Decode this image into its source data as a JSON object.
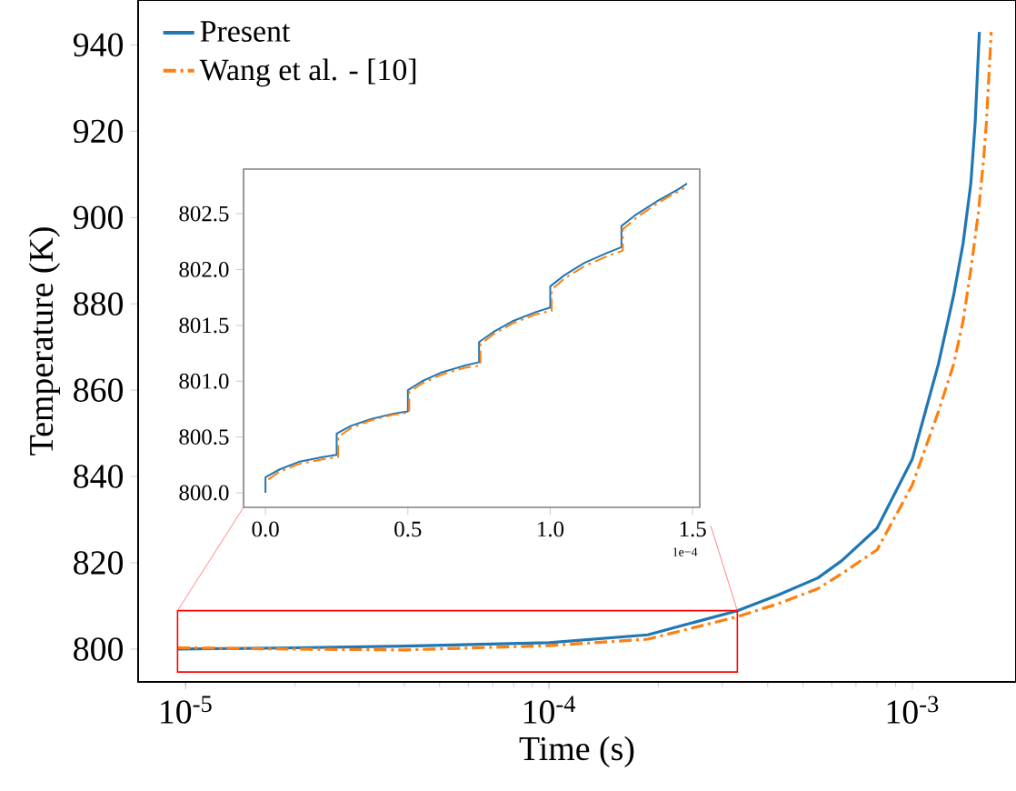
{
  "chart_data": [
    {
      "type": "line",
      "xlabel": "Time (s)",
      "ylabel": "Temperature (K)",
      "log": "x",
      "xlim": [
        7.4e-06,
        0.00193
      ],
      "ylim": [
        792.4,
        950.4
      ],
      "xticks": [
        {
          "value": 1e-05,
          "label": "10$^{-5}$"
        },
        {
          "value": 0.0001,
          "label": "10$^{-4}$"
        },
        {
          "value": 0.001,
          "label": "10$^{-3}$"
        }
      ],
      "yticks": [
        800,
        820,
        840,
        860,
        880,
        900,
        920,
        940
      ],
      "legend": "top left",
      "series": [
        {
          "name": "Present",
          "color": "#1f77b4",
          "line_style": "solid",
          "x": [
            9.5e-06,
            2e-05,
            4e-05,
            0.0001,
            0.000187,
            0.00033,
            0.000427,
            0.00055,
            0.00064,
            0.0008,
            0.001,
            0.00118,
            0.0013,
            0.00138,
            0.00145,
            0.00149,
            0.00153
          ],
          "values": [
            800,
            800.3,
            800.7,
            801.5,
            803.3,
            808.9,
            812.5,
            816.5,
            820.5,
            828,
            844,
            866,
            882,
            894,
            908,
            922,
            943
          ]
        },
        {
          "name": "Wang et al. - [10]",
          "color": "#ff7f0e",
          "line_style": "dashdot",
          "x": [
            9.5e-06,
            2e-05,
            4e-05,
            0.0001,
            0.000187,
            0.00033,
            0.000427,
            0.00055,
            0.00064,
            0.0008,
            0.001,
            0.00118,
            0.0013,
            0.00138,
            0.00145,
            0.00152,
            0.00157,
            0.0016,
            0.00165
          ],
          "values": [
            800.3,
            800,
            799.8,
            800.8,
            802.3,
            807.5,
            810.5,
            814,
            817.5,
            823,
            838,
            855,
            866,
            876,
            888,
            901,
            913,
            922,
            943
          ]
        }
      ]
    },
    {
      "type": "line",
      "xlim": [
        -0.077,
        1.525
      ],
      "ylim": [
        799.87,
        802.9
      ],
      "xticks": [
        {
          "value": 0,
          "label": "0.0"
        },
        {
          "value": 0.5,
          "label": "0.5"
        },
        {
          "value": 1,
          "label": "1.0"
        },
        {
          "value": 1.5,
          "label": "1.5"
        }
      ],
      "yticks": [
        {
          "value": 800,
          "label": "800.0"
        },
        {
          "value": 800.5,
          "label": "800.5"
        },
        {
          "value": 801,
          "label": "801.0"
        },
        {
          "value": 801.5,
          "label": "801.5"
        },
        {
          "value": 802,
          "label": "802.0"
        },
        {
          "value": 802.5,
          "label": "802.5"
        }
      ],
      "annotations": [
        "1e−4"
      ],
      "series": [
        {
          "color": "#1f77b4",
          "line_style": "solid",
          "x": [
            0,
            0,
            0.05,
            0.12,
            0.2,
            0.25,
            0.25,
            0.3,
            0.37,
            0.45,
            0.5,
            0.5,
            0.55,
            0.62,
            0.7,
            0.75,
            0.75,
            0.8,
            0.87,
            0.95,
            1.0,
            1.0,
            1.05,
            1.12,
            1.2,
            1.25,
            1.25,
            1.3,
            1.38,
            1.45,
            1.48
          ],
          "values": [
            800.0,
            800.14,
            800.21,
            800.28,
            800.32,
            800.34,
            800.53,
            800.6,
            800.66,
            800.71,
            800.73,
            800.92,
            801.0,
            801.08,
            801.14,
            801.17,
            801.35,
            801.44,
            801.54,
            801.62,
            801.66,
            801.85,
            801.95,
            802.06,
            802.15,
            802.2,
            802.39,
            802.49,
            802.62,
            802.72,
            802.77
          ]
        },
        {
          "color": "#ff7f0e",
          "line_style": "dashdot",
          "x": [
            0.01,
            0.05,
            0.12,
            0.2,
            0.255,
            0.255,
            0.3,
            0.37,
            0.45,
            0.505,
            0.505,
            0.55,
            0.62,
            0.7,
            0.755,
            0.755,
            0.8,
            0.87,
            0.95,
            1.005,
            1.005,
            1.05,
            1.12,
            1.2,
            1.255,
            1.255,
            1.3,
            1.38,
            1.45,
            1.47
          ],
          "values": [
            800.12,
            800.19,
            800.26,
            800.3,
            800.32,
            800.5,
            800.58,
            800.65,
            800.7,
            800.72,
            800.9,
            800.98,
            801.06,
            801.12,
            801.14,
            801.33,
            801.42,
            801.52,
            801.6,
            801.63,
            801.82,
            801.92,
            802.03,
            802.12,
            802.17,
            802.36,
            802.46,
            802.6,
            802.7,
            802.73
          ]
        }
      ]
    }
  ]
}
